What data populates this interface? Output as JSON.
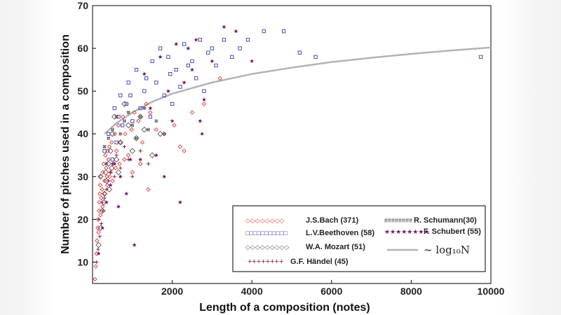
{
  "chart_data": {
    "type": "scatter",
    "xlabel": "Length of a composition  (notes)",
    "ylabel": "Number of pitches used in a composition",
    "xlim": [
      0,
      10000
    ],
    "ylim": [
      5,
      70
    ],
    "x_ticks": [
      "2000",
      "4000",
      "6000",
      "8000",
      "10000"
    ],
    "y_ticks": [
      "10",
      "20",
      "30",
      "40",
      "50",
      "60",
      "70"
    ],
    "legend_position": "bottom-right",
    "series": [
      {
        "name": "J.S.Bach (371)",
        "marker": "diamond",
        "legend_sample": "◇◇◇◇◇◇◇◇",
        "color": "#e03a3a",
        "points": [
          [
            60,
            6
          ],
          [
            80,
            9
          ],
          [
            100,
            12
          ],
          [
            110,
            15
          ],
          [
            130,
            18
          ],
          [
            140,
            20
          ],
          [
            160,
            22
          ],
          [
            170,
            24
          ],
          [
            180,
            26
          ],
          [
            190,
            28
          ],
          [
            210,
            30
          ],
          [
            220,
            25
          ],
          [
            240,
            27
          ],
          [
            260,
            31
          ],
          [
            280,
            33
          ],
          [
            300,
            29
          ],
          [
            320,
            35
          ],
          [
            340,
            32
          ],
          [
            360,
            30
          ],
          [
            380,
            36
          ],
          [
            400,
            34
          ],
          [
            420,
            37
          ],
          [
            450,
            31
          ],
          [
            480,
            38
          ],
          [
            520,
            33
          ],
          [
            560,
            40
          ],
          [
            600,
            36
          ],
          [
            650,
            42
          ],
          [
            700,
            38
          ],
          [
            760,
            44
          ],
          [
            820,
            40
          ],
          [
            900,
            35
          ],
          [
            980,
            41
          ],
          [
            1050,
            45
          ],
          [
            1150,
            43
          ],
          [
            1250,
            38
          ],
          [
            1350,
            47
          ],
          [
            1450,
            45
          ],
          [
            1600,
            41
          ],
          [
            1800,
            40
          ],
          [
            2050,
            42
          ],
          [
            2300,
            36
          ],
          [
            2500,
            45
          ],
          [
            2800,
            47
          ],
          [
            3200,
            53
          ],
          [
            150,
            17
          ],
          [
            200,
            21
          ],
          [
            250,
            23
          ],
          [
            310,
            26
          ],
          [
            370,
            28
          ],
          [
            430,
            30
          ],
          [
            500,
            29
          ],
          [
            580,
            32
          ],
          [
            680,
            33
          ],
          [
            800,
            34
          ],
          [
            1000,
            31
          ],
          [
            1200,
            33
          ],
          [
            1400,
            27
          ],
          [
            2200,
            37
          ]
        ]
      },
      {
        "name": "L.V.Beethoven (58)",
        "marker": "square",
        "legend_sample": "□□□□□□□□□□□",
        "color": "#3a3ab0",
        "points": [
          [
            400,
            40
          ],
          [
            550,
            46
          ],
          [
            700,
            49
          ],
          [
            900,
            52
          ],
          [
            1100,
            55
          ],
          [
            1300,
            50
          ],
          [
            1500,
            57
          ],
          [
            1700,
            60
          ],
          [
            1900,
            58
          ],
          [
            2100,
            55
          ],
          [
            2300,
            61
          ],
          [
            2500,
            57
          ],
          [
            2700,
            62
          ],
          [
            2900,
            59
          ],
          [
            3100,
            56
          ],
          [
            3300,
            62
          ],
          [
            3500,
            58
          ],
          [
            3700,
            60
          ],
          [
            3900,
            62
          ],
          [
            4300,
            64
          ],
          [
            4800,
            64
          ],
          [
            5200,
            59
          ],
          [
            5600,
            58
          ],
          [
            9750,
            58
          ],
          [
            1600,
            52
          ],
          [
            1800,
            49
          ],
          [
            2000,
            47
          ],
          [
            2200,
            51
          ],
          [
            2600,
            53
          ],
          [
            2800,
            50
          ],
          [
            1200,
            46
          ],
          [
            1000,
            43
          ],
          [
            850,
            47
          ],
          [
            650,
            44
          ],
          [
            600,
            38
          ],
          [
            750,
            42
          ],
          [
            950,
            49
          ],
          [
            1350,
            53
          ],
          [
            1450,
            44
          ],
          [
            1950,
            54
          ],
          [
            2400,
            56
          ],
          [
            3000,
            60
          ],
          [
            300,
            36
          ],
          [
            500,
            34
          ]
        ]
      },
      {
        "name": "W.A. Mozart (51)",
        "marker": "diamond-large",
        "legend_sample": "◇◇◇◇◇◇◇◇◇",
        "color": "#555555",
        "points": [
          [
            150,
            14
          ],
          [
            200,
            18
          ],
          [
            250,
            22
          ],
          [
            300,
            26
          ],
          [
            350,
            29
          ],
          [
            400,
            33
          ],
          [
            450,
            36
          ],
          [
            500,
            40
          ],
          [
            550,
            44
          ],
          [
            600,
            34
          ],
          [
            650,
            31
          ],
          [
            700,
            38
          ],
          [
            800,
            47
          ],
          [
            900,
            42
          ],
          [
            1000,
            36
          ],
          [
            1100,
            39
          ],
          [
            1200,
            44
          ],
          [
            1300,
            41
          ],
          [
            1500,
            35
          ],
          [
            1700,
            40
          ],
          [
            200,
            30
          ],
          [
            280,
            24
          ],
          [
            330,
            31
          ],
          [
            420,
            27
          ],
          [
            480,
            32
          ]
        ]
      },
      {
        "name": "G.F. Händel (45)",
        "marker": "plus",
        "legend_sample": "++++++++",
        "color": "#8b1a4a",
        "points": [
          [
            100,
            10
          ],
          [
            140,
            13
          ],
          [
            180,
            16
          ],
          [
            220,
            19
          ],
          [
            260,
            22
          ],
          [
            300,
            25
          ],
          [
            350,
            27
          ],
          [
            400,
            29
          ],
          [
            450,
            31
          ],
          [
            500,
            33
          ],
          [
            550,
            30
          ],
          [
            600,
            35
          ],
          [
            700,
            32
          ],
          [
            800,
            37
          ],
          [
            900,
            34
          ],
          [
            1000,
            30
          ],
          [
            1200,
            36
          ],
          [
            1400,
            33
          ],
          [
            160,
            20
          ],
          [
            240,
            24
          ]
        ]
      },
      {
        "name": "R. Schumann(30)",
        "marker": "hash",
        "legend_sample": "########",
        "color": "#444444",
        "points": [
          [
            300,
            37
          ],
          [
            400,
            39
          ],
          [
            500,
            41
          ],
          [
            600,
            44
          ],
          [
            700,
            40
          ],
          [
            800,
            43
          ],
          [
            900,
            45
          ],
          [
            1000,
            42
          ],
          [
            1100,
            39
          ],
          [
            1200,
            44
          ],
          [
            1300,
            46
          ],
          [
            1400,
            41
          ],
          [
            1600,
            43
          ],
          [
            1800,
            40
          ],
          [
            350,
            33
          ]
        ]
      },
      {
        "name": "F. Schubert (55)",
        "marker": "star",
        "legend_sample": "★★★★★★★★",
        "color": "#7a1660",
        "points": [
          [
            150,
            12
          ],
          [
            250,
            18
          ],
          [
            350,
            24
          ],
          [
            450,
            28
          ],
          [
            550,
            33
          ],
          [
            700,
            30
          ],
          [
            850,
            26
          ],
          [
            1050,
            14
          ],
          [
            1200,
            34
          ],
          [
            1300,
            54
          ],
          [
            1450,
            46
          ],
          [
            1600,
            35
          ],
          [
            1800,
            30
          ],
          [
            2000,
            43
          ],
          [
            2100,
            61
          ],
          [
            2200,
            24
          ],
          [
            2300,
            52
          ],
          [
            2500,
            55
          ],
          [
            2600,
            62
          ],
          [
            2700,
            43
          ],
          [
            2800,
            48
          ],
          [
            3000,
            57
          ],
          [
            3300,
            65
          ],
          [
            3600,
            64
          ],
          [
            4000,
            57
          ],
          [
            1700,
            58
          ],
          [
            1900,
            50
          ],
          [
            2400,
            60
          ],
          [
            2750,
            40
          ],
          [
            650,
            23
          ],
          [
            950,
            34
          ]
        ]
      }
    ],
    "curve": {
      "label": "~ log₁₀N",
      "color": "#b3b3b3",
      "points": [
        [
          300,
          40
        ],
        [
          600,
          42.5
        ],
        [
          1000,
          45
        ],
        [
          1500,
          47.5
        ],
        [
          2000,
          49.4
        ],
        [
          3000,
          52
        ],
        [
          4000,
          54
        ],
        [
          5000,
          55.5
        ],
        [
          6000,
          56.8
        ],
        [
          7000,
          57.8
        ],
        [
          8000,
          58.7
        ],
        [
          9000,
          59.5
        ],
        [
          10000,
          60.2
        ]
      ]
    }
  }
}
